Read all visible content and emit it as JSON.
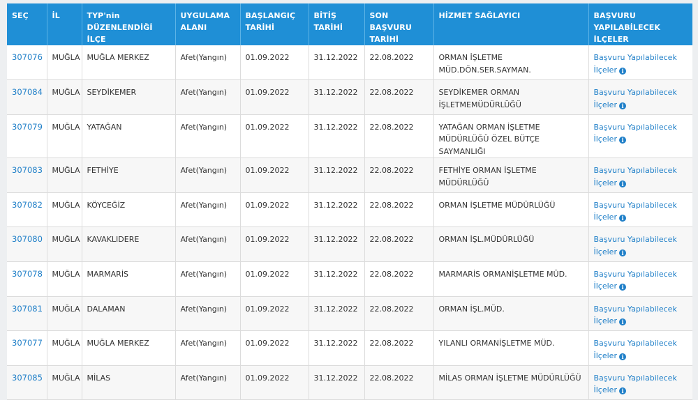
{
  "headers": {
    "sec": "SEÇ",
    "il": "İL",
    "ilce": "TYP'nin DÜZENLENDİĞİ İLÇE",
    "alan": "UYGULAMA ALANI",
    "baslangic": "BAŞLANGIÇ TARİHİ",
    "bitis": "BİTİŞ TARİHİ",
    "son_basvuru": "SON BAŞVURU TARİHİ",
    "saglayici": "HİZMET SAĞLAYICI",
    "basvuru_ilceler": "BAŞVURU YAPILABİLECEK İLÇELER"
  },
  "link_label": "Başvuru Yapılabilecek İlçeler",
  "info_glyph": "i",
  "rows": [
    {
      "id": "307076",
      "il": "MUĞLA",
      "ilce": "MUĞLA MERKEZ",
      "alan": "Afet(Yangın)",
      "baslangic": "01.09.2022",
      "bitis": "31.12.2022",
      "son": "22.08.2022",
      "saglayici": "ORMAN İŞLETME MÜD.DÖN.SER.SAYMAN."
    },
    {
      "id": "307084",
      "il": "MUĞLA",
      "ilce": "SEYDİKEMER",
      "alan": "Afet(Yangın)",
      "baslangic": "01.09.2022",
      "bitis": "31.12.2022",
      "son": "22.08.2022",
      "saglayici": "SEYDİKEMER ORMAN İŞLETMEMÜDÜRLÜĞÜ"
    },
    {
      "id": "307079",
      "il": "MUĞLA",
      "ilce": "YATAĞAN",
      "alan": "Afet(Yangın)",
      "baslangic": "01.09.2022",
      "bitis": "31.12.2022",
      "son": "22.08.2022",
      "saglayici": "YATAĞAN ORMAN İŞLETME MÜDÜRLÜĞÜ ÖZEL BÜTÇE SAYMANLIĞI"
    },
    {
      "id": "307083",
      "il": "MUĞLA",
      "ilce": "FETHİYE",
      "alan": "Afet(Yangın)",
      "baslangic": "01.09.2022",
      "bitis": "31.12.2022",
      "son": "22.08.2022",
      "saglayici": "FETHİYE ORMAN İŞLETME MÜDÜRLÜĞÜ"
    },
    {
      "id": "307082",
      "il": "MUĞLA",
      "ilce": "KÖYCEĞİZ",
      "alan": "Afet(Yangın)",
      "baslangic": "01.09.2022",
      "bitis": "31.12.2022",
      "son": "22.08.2022",
      "saglayici": "ORMAN İŞLETME MÜDÜRLÜĞÜ"
    },
    {
      "id": "307080",
      "il": "MUĞLA",
      "ilce": "KAVAKLIDERE",
      "alan": "Afet(Yangın)",
      "baslangic": "01.09.2022",
      "bitis": "31.12.2022",
      "son": "22.08.2022",
      "saglayici": "ORMAN İŞL.MÜDÜRLÜĞÜ"
    },
    {
      "id": "307078",
      "il": "MUĞLA",
      "ilce": "MARMARİS",
      "alan": "Afet(Yangın)",
      "baslangic": "01.09.2022",
      "bitis": "31.12.2022",
      "son": "22.08.2022",
      "saglayici": "MARMARİS ORMANİŞLETME MÜD."
    },
    {
      "id": "307081",
      "il": "MUĞLA",
      "ilce": "DALAMAN",
      "alan": "Afet(Yangın)",
      "baslangic": "01.09.2022",
      "bitis": "31.12.2022",
      "son": "22.08.2022",
      "saglayici": "ORMAN İŞL.MÜD."
    },
    {
      "id": "307077",
      "il": "MUĞLA",
      "ilce": "MUĞLA MERKEZ",
      "alan": "Afet(Yangın)",
      "baslangic": "01.09.2022",
      "bitis": "31.12.2022",
      "son": "22.08.2022",
      "saglayici": "YILANLI ORMANİŞLETME MÜD."
    },
    {
      "id": "307085",
      "il": "MUĞLA",
      "ilce": "MİLAS",
      "alan": "Afet(Yangın)",
      "baslangic": "01.09.2022",
      "bitis": "31.12.2022",
      "son": "22.08.2022",
      "saglayici": "MİLAS ORMAN İŞLETME MÜDÜRLÜĞÜ"
    }
  ]
}
